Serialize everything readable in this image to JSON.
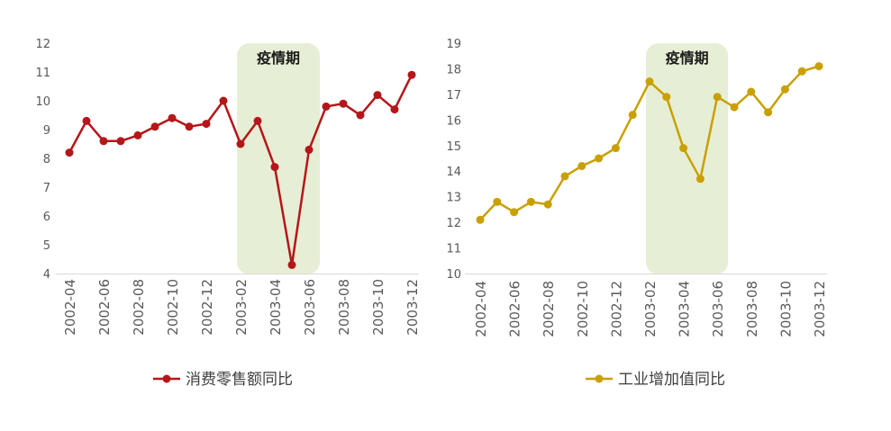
{
  "chart_data": [
    {
      "type": "line",
      "x": [
        "2002-04",
        "2002-05",
        "2002-06",
        "2002-07",
        "2002-08",
        "2002-09",
        "2002-10",
        "2002-11",
        "2002-12",
        "2003-01",
        "2003-02",
        "2003-03",
        "2003-04",
        "2003-05",
        "2003-06",
        "2003-07",
        "2003-08",
        "2003-09",
        "2003-10",
        "2003-11",
        "2003-12"
      ],
      "xtick_labels": [
        "2002-04",
        "2002-06",
        "2002-08",
        "2002-10",
        "2002-12",
        "2003-02",
        "2003-04",
        "2003-06",
        "2003-08",
        "2003-10",
        "2003-12"
      ],
      "series": [
        {
          "name": "消费零售额同比",
          "values": [
            8.2,
            9.3,
            8.6,
            8.6,
            8.8,
            9.1,
            9.4,
            9.1,
            9.2,
            10.0,
            8.5,
            9.3,
            7.7,
            4.3,
            8.3,
            9.8,
            9.9,
            9.5,
            10.2,
            9.7,
            10.9
          ]
        }
      ],
      "ylim": [
        4,
        12
      ],
      "yticks": [
        4,
        5,
        6,
        7,
        8,
        9,
        10,
        11,
        12
      ],
      "grid": false,
      "legend": "bottom",
      "color": "#b5161a",
      "shade": {
        "from": "2003-02",
        "to": "2003-06",
        "label": "疫情期",
        "color": "#e6eed5"
      }
    },
    {
      "type": "line",
      "x": [
        "2002-04",
        "2002-05",
        "2002-06",
        "2002-07",
        "2002-08",
        "2002-09",
        "2002-10",
        "2002-11",
        "2002-12",
        "2003-01",
        "2003-02",
        "2003-03",
        "2003-04",
        "2003-05",
        "2003-06",
        "2003-07",
        "2003-08",
        "2003-09",
        "2003-10",
        "2003-11",
        "2003-12"
      ],
      "xtick_labels": [
        "2002-04",
        "2002-06",
        "2002-08",
        "2002-10",
        "2002-12",
        "2003-02",
        "2003-04",
        "2003-06",
        "2003-08",
        "2003-10",
        "2003-12"
      ],
      "series": [
        {
          "name": "工业增加值同比",
          "values": [
            12.1,
            12.8,
            12.4,
            12.8,
            12.7,
            13.8,
            14.2,
            14.5,
            14.9,
            16.2,
            17.5,
            16.9,
            14.9,
            13.7,
            16.9,
            16.5,
            17.1,
            16.3,
            17.2,
            17.9,
            18.1
          ]
        }
      ],
      "ylim": [
        10,
        19
      ],
      "yticks": [
        10,
        11,
        12,
        13,
        14,
        15,
        16,
        17,
        18,
        19
      ],
      "grid": false,
      "legend": "bottom",
      "color": "#c9a000",
      "shade": {
        "from": "2003-02",
        "to": "2003-06",
        "label": "疫情期",
        "color": "#e6eed5"
      }
    }
  ]
}
